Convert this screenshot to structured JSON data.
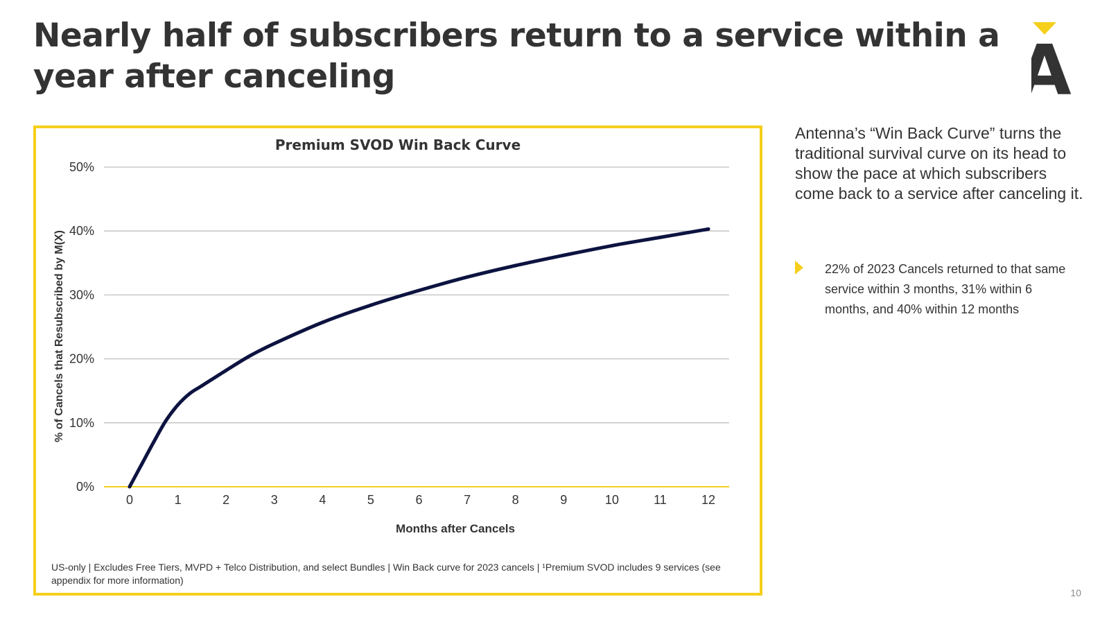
{
  "slide": {
    "title": "Nearly half of subscribers return to a service within a year after canceling",
    "description": "Antenna’s “Win Back Curve” turns the traditional survival curve on its head to show the pace at which subscribers come back to a service after canceling it.",
    "bullet": "22% of 2023 Cancels returned to that same service within 3 months, 31% within 6 months, and 40% within 12 months",
    "footnote": "US-only | Excludes Free Tiers, MVPD + Telco Distribution, and select Bundles | Win Back curve for 2023 cancels | ¹Premium SVOD includes 9 services (see appendix for more information)",
    "page_number": "10",
    "logo_letter": "A"
  },
  "colors": {
    "accent": "#F5CF1B",
    "line": "#0D1340",
    "text": "#333333",
    "grid": "#BFBFBF"
  },
  "chart_data": {
    "type": "line",
    "title": "Premium SVOD Win Back Curve",
    "xlabel": "Months after Cancels",
    "ylabel": "% of Cancels that Resubscribed by M(X)",
    "x": [
      0,
      0.25,
      0.5,
      0.75,
      1,
      1.25,
      1.5,
      2,
      2.5,
      3,
      4,
      5,
      6,
      7,
      8,
      9,
      10,
      11,
      12
    ],
    "values": [
      0,
      3.5,
      7,
      10.3,
      12.8,
      14.6,
      15.8,
      18.2,
      20.5,
      22.4,
      25.7,
      28.4,
      30.7,
      32.8,
      34.6,
      36.2,
      37.7,
      39.0,
      40.3
    ],
    "xlim": [
      0,
      12
    ],
    "ylim": [
      0,
      50
    ],
    "x_ticks": [
      "0",
      "1",
      "2",
      "3",
      "4",
      "5",
      "6",
      "7",
      "8",
      "9",
      "10",
      "11",
      "12"
    ],
    "y_ticks": [
      "0%",
      "10%",
      "20%",
      "30%",
      "40%",
      "50%"
    ],
    "grid": true
  }
}
